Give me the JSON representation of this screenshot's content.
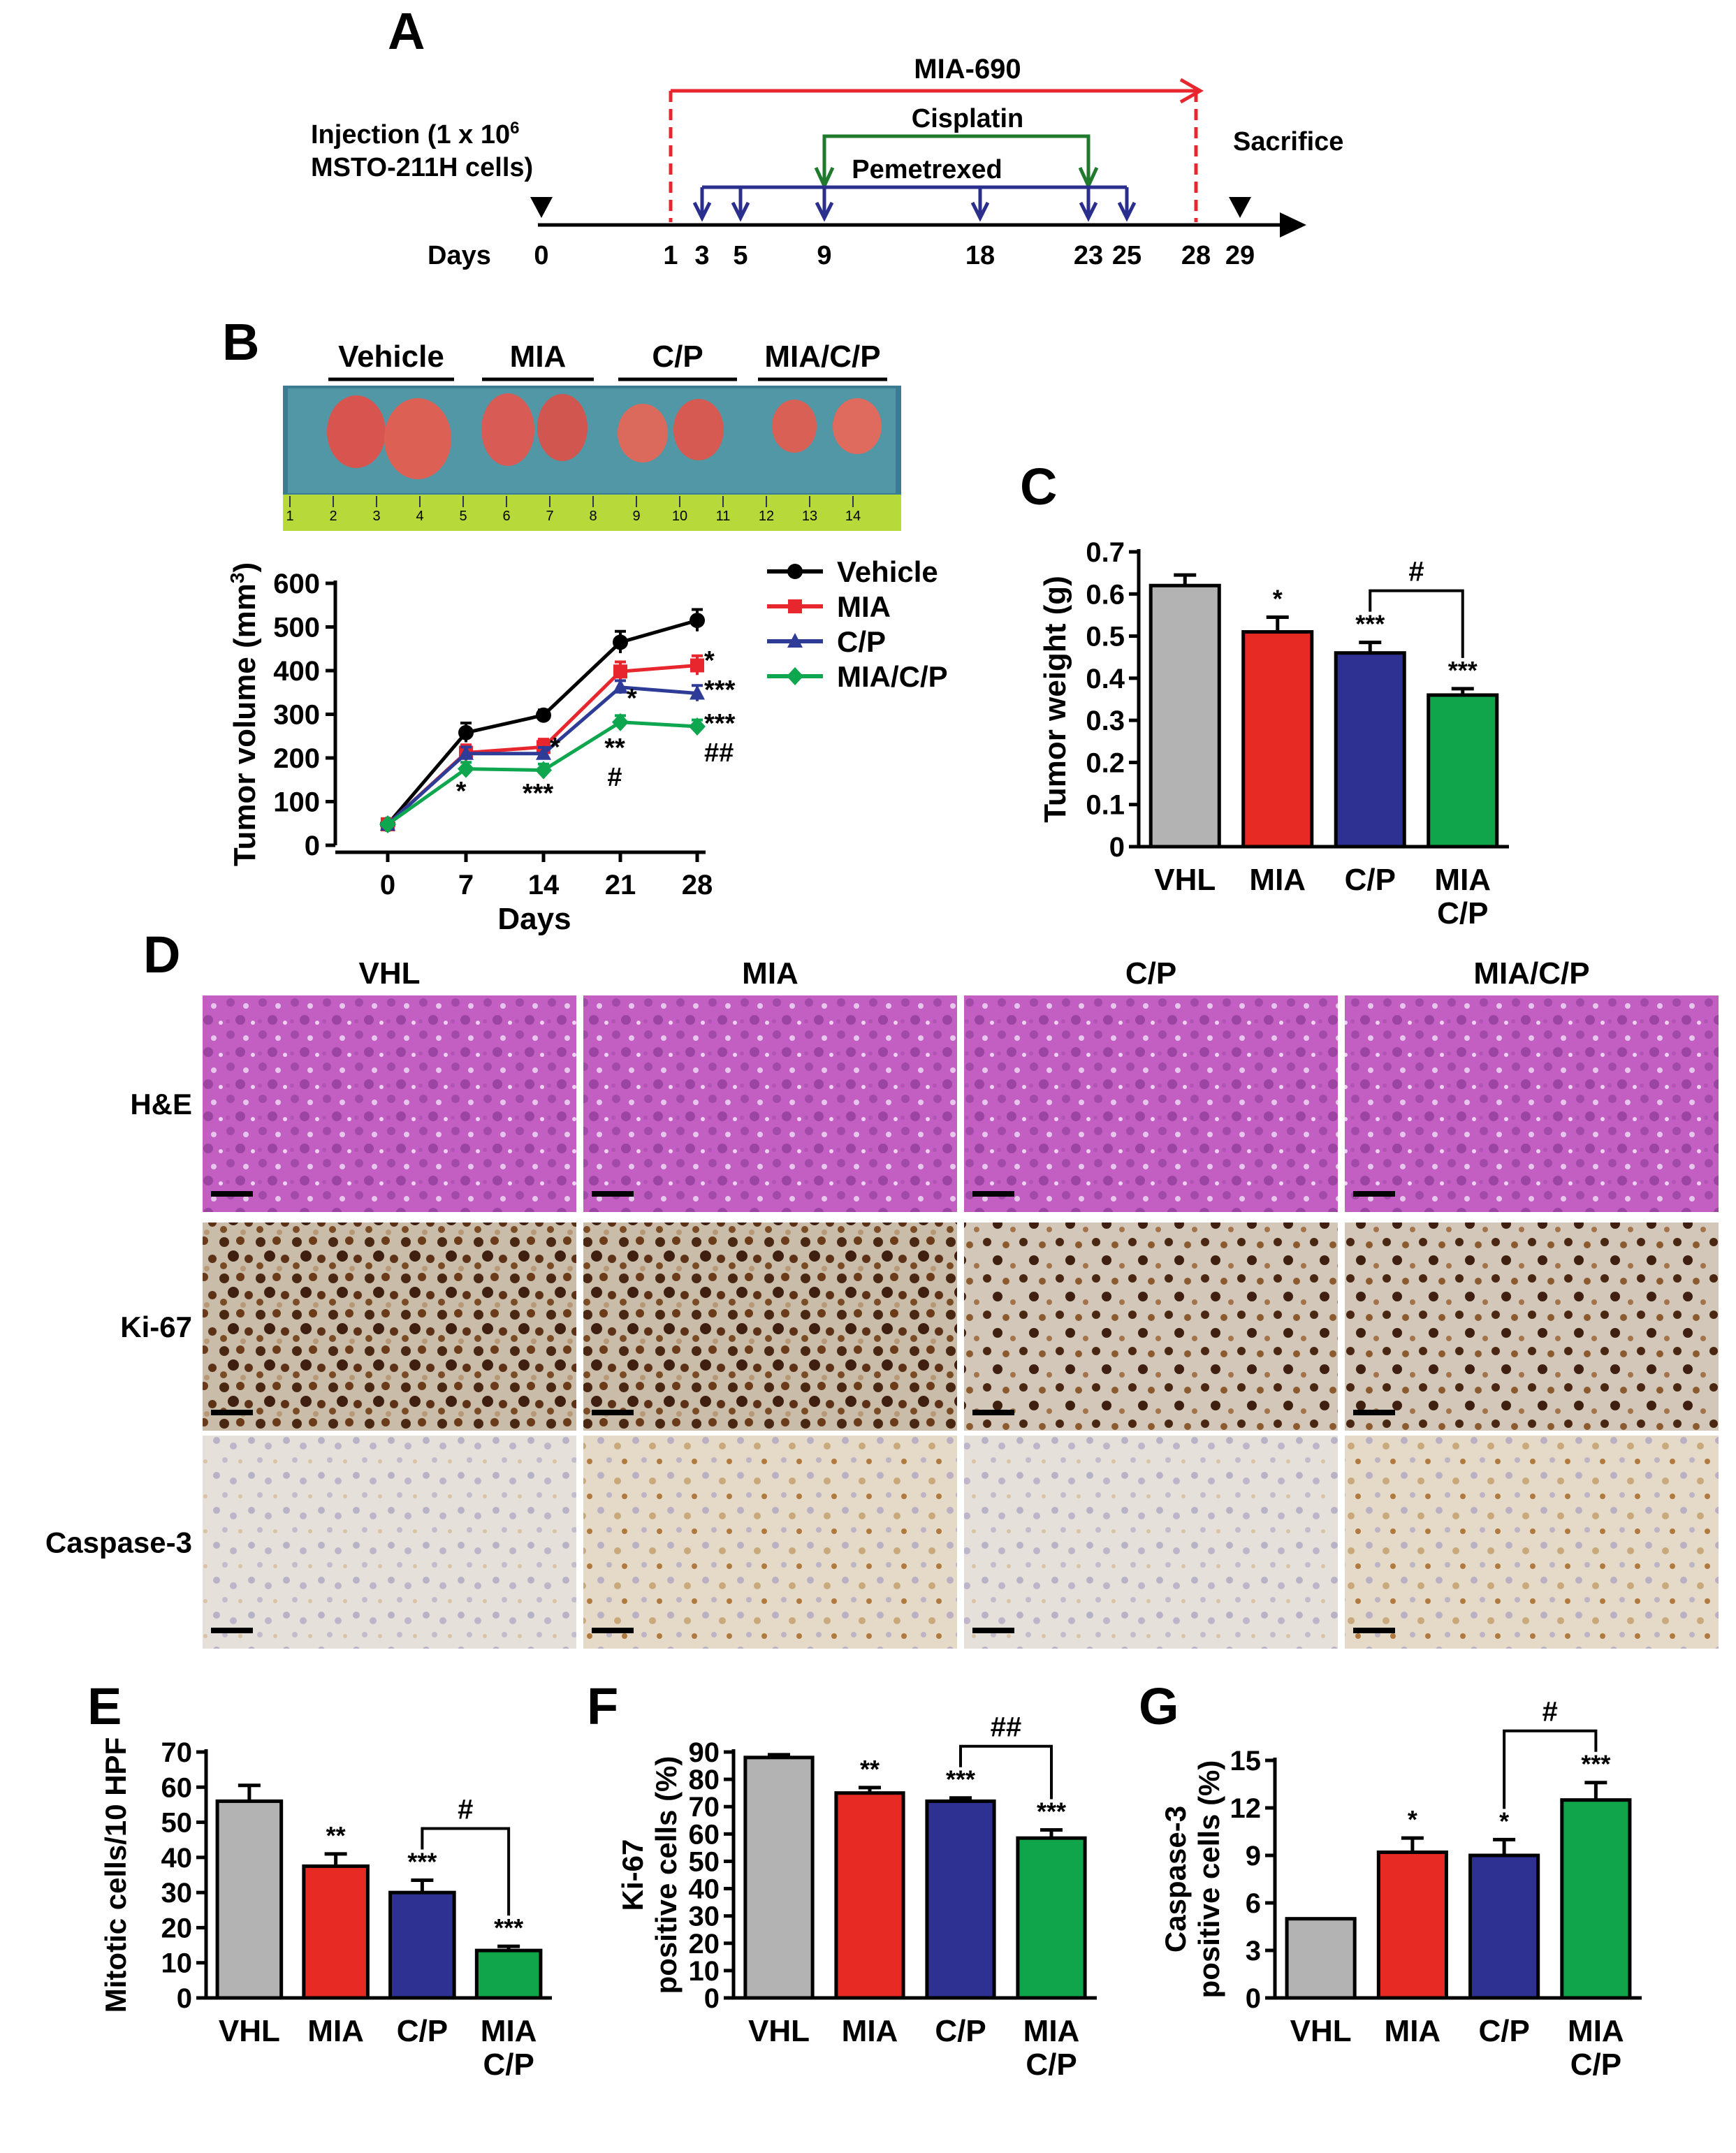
{
  "panel_letters": {
    "A": "A",
    "B": "B",
    "C": "C",
    "D": "D",
    "E": "E",
    "F": "F",
    "G": "G"
  },
  "timeline": {
    "injection_line1": "Injection (1 x 10",
    "injection_sup": "6",
    "injection_line2": "MSTO-211H cells)",
    "sacrifice": "Sacrifice",
    "days_label": "Days",
    "mia690": "MIA-690",
    "cisplatin": "Cisplatin",
    "pemetrexed": "Pemetrexed",
    "days": [
      "0",
      "1",
      "3",
      "5",
      "9",
      "18",
      "23",
      "25",
      "28",
      "29"
    ],
    "colors": {
      "mia": "#e8262d",
      "cis": "#1f7a2e",
      "pem": "#2a2e8c"
    }
  },
  "photo": {
    "group_labels": [
      "Vehicle",
      "MIA",
      "C/P",
      "MIA/C/P"
    ],
    "ruler_numbers": [
      "1",
      "2",
      "3",
      "4",
      "5",
      "6",
      "7",
      "8",
      "9",
      "10",
      "11",
      "12",
      "13",
      "14"
    ]
  },
  "colors": {
    "vehicle": "#000000",
    "mia": "#e8262d",
    "cp": "#2e3c98",
    "miacp": "#0ea64f",
    "gray": "#b3b3b3",
    "red": "#e82a24",
    "blue": "#2e3192",
    "green": "#10a54a"
  },
  "chart_data": [
    {
      "panel": "B",
      "type": "line",
      "x": [
        0,
        7,
        14,
        21,
        28
      ],
      "xlabel": "Days",
      "ylabel": "Tumor volume (mm³)",
      "ylabel_main": "Tumor volume (mm",
      "ylabel_sup": "3",
      "ylim": [
        0,
        600
      ],
      "yticks": [
        "0",
        "100",
        "200",
        "300",
        "400",
        "500",
        "600"
      ],
      "xticks": [
        "0",
        "7",
        "14",
        "21",
        "28"
      ],
      "series": [
        {
          "name": "Vehicle",
          "values": [
            48,
            258,
            298,
            465,
            515
          ],
          "err": [
            5,
            22,
            12,
            25,
            25
          ]
        },
        {
          "name": "MIA",
          "values": [
            48,
            212,
            225,
            398,
            412
          ],
          "err": [
            5,
            18,
            18,
            22,
            22
          ]
        },
        {
          "name": "C/P",
          "values": [
            48,
            210,
            210,
            362,
            348
          ],
          "err": [
            5,
            15,
            14,
            15,
            18
          ]
        },
        {
          "name": "MIA/C/P",
          "values": [
            48,
            175,
            172,
            282,
            272
          ],
          "err": [
            5,
            15,
            14,
            15,
            15
          ]
        }
      ],
      "annotations": {
        "MIA": [
          {
            "x": 28,
            "text": "*"
          }
        ],
        "C/P": [
          {
            "x": 14,
            "text": "*"
          },
          {
            "x": 21,
            "text": "*"
          },
          {
            "x": 28,
            "text": "***"
          }
        ],
        "MIA/C/P": [
          {
            "x": 7,
            "text": "*"
          },
          {
            "x": 14,
            "text": "***"
          },
          {
            "x": 21,
            "text": "**"
          },
          {
            "x": 21,
            "text": "#"
          },
          {
            "x": 28,
            "text": "***"
          },
          {
            "x": 28,
            "text": "##"
          }
        ]
      }
    },
    {
      "panel": "C",
      "type": "bar",
      "categories": [
        "VHL",
        "MIA",
        "C/P",
        "MIA C/P"
      ],
      "values": [
        0.62,
        0.51,
        0.46,
        0.36
      ],
      "err": [
        0.025,
        0.035,
        0.025,
        0.015
      ],
      "ylabel": "Tumor weight (g)",
      "ylim": [
        0,
        0.7
      ],
      "yticks": [
        "0",
        "0.1",
        "0.2",
        "0.3",
        "0.4",
        "0.5",
        "0.6",
        "0.7"
      ],
      "stars": [
        "",
        "*",
        "***",
        "***"
      ],
      "bracket": {
        "from": 2,
        "to": 3,
        "text": "#"
      }
    },
    {
      "panel": "E",
      "type": "bar",
      "categories": [
        "VHL",
        "MIA",
        "C/P",
        "MIA C/P"
      ],
      "values": [
        56,
        37.5,
        30,
        13.5
      ],
      "err": [
        4.5,
        3.5,
        3.5,
        1.2
      ],
      "ylabel": "Mitotic cells/10 HPF",
      "ylim": [
        0,
        70
      ],
      "yticks": [
        "0",
        "10",
        "20",
        "30",
        "40",
        "50",
        "60",
        "70"
      ],
      "stars": [
        "",
        "**",
        "***",
        "***"
      ],
      "bracket": {
        "from": 2,
        "to": 3,
        "text": "#"
      }
    },
    {
      "panel": "F",
      "type": "bar",
      "categories": [
        "VHL",
        "MIA",
        "C/P",
        "MIA C/P"
      ],
      "values": [
        88,
        75,
        72,
        58.5
      ],
      "err": [
        1,
        2,
        1.2,
        3
      ],
      "ylabel_line1": "Ki-67",
      "ylabel_line2": "positive cells (%)",
      "ylim": [
        0,
        90
      ],
      "yticks": [
        "0",
        "10",
        "20",
        "30",
        "40",
        "50",
        "60",
        "70",
        "80",
        "90"
      ],
      "stars": [
        "",
        "**",
        "***",
        "***"
      ],
      "bracket": {
        "from": 2,
        "to": 3,
        "text": "##"
      }
    },
    {
      "panel": "G",
      "type": "bar",
      "categories": [
        "VHL",
        "MIA",
        "C/P",
        "MIA C/P"
      ],
      "values": [
        5,
        9.2,
        9,
        12.5
      ],
      "err": [
        0,
        0.9,
        1,
        1.1
      ],
      "ylabel_line1": "Caspase-3",
      "ylabel_line2": "positive cells (%)",
      "ylim": [
        0,
        15
      ],
      "yticks": [
        "0",
        "3",
        "6",
        "9",
        "12",
        "15"
      ],
      "stars": [
        "",
        "*",
        "*",
        "***"
      ],
      "bracket": {
        "from": 2,
        "to": 3,
        "text": "#"
      }
    }
  ],
  "histology": {
    "columns": [
      "VHL",
      "MIA",
      "C/P",
      "MIA/C/P"
    ],
    "rows": [
      "H&E",
      "Ki-67",
      "Caspase-3"
    ]
  }
}
